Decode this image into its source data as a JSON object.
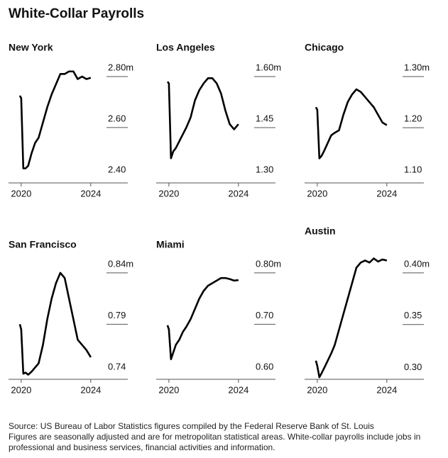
{
  "title": "White-Collar Payrolls",
  "source": "Source: US Bureau of Labor Statistics figures compiled by the Federal Reserve Bank of St. Louis",
  "notes": "Figures are seasonally adjusted and are for metropolitan statistical areas. White-collar payrolls include jobs in professional and business services, financial activities and information.",
  "chart_data": [
    {
      "type": "line",
      "title": "New York",
      "color": "#000000",
      "x": [
        2019.92,
        2020.0,
        2020.12,
        2020.25,
        2020.4,
        2020.6,
        2020.8,
        2021.0,
        2021.25,
        2021.5,
        2021.75,
        2022.0,
        2022.25,
        2022.5,
        2022.75,
        2023.0,
        2023.25,
        2023.5,
        2023.75,
        2024.0
      ],
      "values": [
        2.725,
        2.715,
        2.44,
        2.44,
        2.45,
        2.5,
        2.54,
        2.56,
        2.62,
        2.68,
        2.73,
        2.77,
        2.81,
        2.81,
        2.82,
        2.82,
        2.79,
        2.8,
        2.79,
        2.795
      ],
      "xlim": [
        2019.27,
        2026.13
      ],
      "xticks": [
        2020,
        2024
      ],
      "ylim": [
        2.383,
        2.836
      ],
      "yticks": [
        {
          "value": 2.8,
          "label": "2.80m"
        },
        {
          "value": 2.6,
          "label": "2.60"
        },
        {
          "value": 2.4,
          "label": "2.40"
        }
      ]
    },
    {
      "type": "line",
      "title": "Los Angeles",
      "color": "#000000",
      "x": [
        2019.92,
        2020.0,
        2020.12,
        2020.25,
        2020.4,
        2020.6,
        2020.8,
        2021.0,
        2021.25,
        2021.5,
        2021.75,
        2022.0,
        2022.25,
        2022.5,
        2022.75,
        2023.0,
        2023.25,
        2023.5,
        2023.75,
        2024.0
      ],
      "values": [
        1.585,
        1.58,
        1.36,
        1.38,
        1.39,
        1.41,
        1.43,
        1.45,
        1.48,
        1.53,
        1.56,
        1.58,
        1.595,
        1.595,
        1.58,
        1.55,
        1.5,
        1.46,
        1.445,
        1.46
      ],
      "xlim": [
        2019.27,
        2026.13
      ],
      "xticks": [
        2020,
        2024
      ],
      "ylim": [
        1.2875,
        1.627
      ],
      "yticks": [
        {
          "value": 1.6,
          "label": "1.60m"
        },
        1.45,
        {
          "value": 1.3,
          "label": "1.30"
        }
      ]
    },
    {
      "type": "line",
      "title": "Chicago",
      "color": "#000000",
      "x": [
        2019.92,
        2020.0,
        2020.12,
        2020.25,
        2020.4,
        2020.6,
        2020.8,
        2021.0,
        2021.25,
        2021.5,
        2021.75,
        2022.0,
        2022.25,
        2022.5,
        2022.75,
        2023.0,
        2023.25,
        2023.5,
        2023.75,
        2024.0
      ],
      "values": [
        1.24,
        1.235,
        1.14,
        1.145,
        1.155,
        1.17,
        1.185,
        1.19,
        1.195,
        1.225,
        1.25,
        1.265,
        1.275,
        1.27,
        1.26,
        1.25,
        1.24,
        1.225,
        1.21,
        1.205
      ],
      "xlim": [
        2019.27,
        2026.13
      ],
      "xticks": [
        2020,
        2024
      ],
      "ylim": [
        1.092,
        1.318
      ],
      "yticks": [
        {
          "value": 1.3,
          "label": "1.30m"
        },
        {
          "value": 1.2,
          "label": "1.20"
        },
        {
          "value": 1.1,
          "label": "1.10"
        }
      ]
    },
    {
      "type": "line",
      "title": "San Francisco",
      "color": "#000000",
      "x": [
        2019.92,
        2020.0,
        2020.12,
        2020.25,
        2020.4,
        2020.6,
        2020.8,
        2021.0,
        2021.25,
        2021.5,
        2021.75,
        2022.0,
        2022.25,
        2022.5,
        2022.75,
        2023.0,
        2023.25,
        2023.5,
        2023.75,
        2024.0
      ],
      "values": [
        0.79,
        0.785,
        0.742,
        0.743,
        0.741,
        0.744,
        0.748,
        0.752,
        0.77,
        0.795,
        0.815,
        0.83,
        0.84,
        0.835,
        0.815,
        0.795,
        0.775,
        0.77,
        0.765,
        0.758
      ],
      "xlim": [
        2019.27,
        2026.13
      ],
      "xticks": [
        2020,
        2024
      ],
      "ylim": [
        0.7365,
        0.8675
      ],
      "yticks": [
        {
          "value": 0.84,
          "label": "0.84m"
        },
        0.79,
        0.74
      ]
    },
    {
      "type": "line",
      "title": "Miami",
      "color": "#000000",
      "x": [
        2019.92,
        2020.0,
        2020.12,
        2020.25,
        2020.4,
        2020.6,
        2020.8,
        2021.0,
        2021.25,
        2021.5,
        2021.75,
        2022.0,
        2022.25,
        2022.5,
        2022.75,
        2023.0,
        2023.25,
        2023.5,
        2023.75,
        2024.0
      ],
      "values": [
        0.698,
        0.69,
        0.632,
        0.645,
        0.66,
        0.67,
        0.685,
        0.695,
        0.71,
        0.73,
        0.75,
        0.765,
        0.775,
        0.78,
        0.785,
        0.79,
        0.79,
        0.788,
        0.785,
        0.786
      ],
      "xlim": [
        2019.27,
        2026.13
      ],
      "xticks": [
        2020,
        2024
      ],
      "ylim": [
        0.593,
        0.855
      ],
      "yticks": [
        {
          "value": 0.8,
          "label": "0.80m"
        },
        {
          "value": 0.7,
          "label": "0.70"
        },
        {
          "value": 0.6,
          "label": "0.60"
        }
      ]
    },
    {
      "type": "line",
      "title": "Austin",
      "color": "#000000",
      "x": [
        2019.92,
        2020.0,
        2020.12,
        2020.25,
        2020.4,
        2020.6,
        2020.8,
        2021.0,
        2021.25,
        2021.5,
        2021.75,
        2022.0,
        2022.25,
        2022.5,
        2022.75,
        2023.0,
        2023.25,
        2023.5,
        2023.75,
        2024.0
      ],
      "values": [
        0.315,
        0.31,
        0.299,
        0.303,
        0.308,
        0.315,
        0.322,
        0.33,
        0.345,
        0.36,
        0.375,
        0.39,
        0.405,
        0.41,
        0.412,
        0.41,
        0.414,
        0.411,
        0.413,
        0.412
      ],
      "xlim": [
        2019.27,
        2026.13
      ],
      "xticks": [
        2020,
        2024
      ],
      "ylim": [
        0.297,
        0.4274
      ],
      "yticks": [
        {
          "value": 0.4,
          "label": "0.40m"
        },
        0.35,
        {
          "value": 0.3,
          "label": "0.30"
        }
      ]
    }
  ]
}
